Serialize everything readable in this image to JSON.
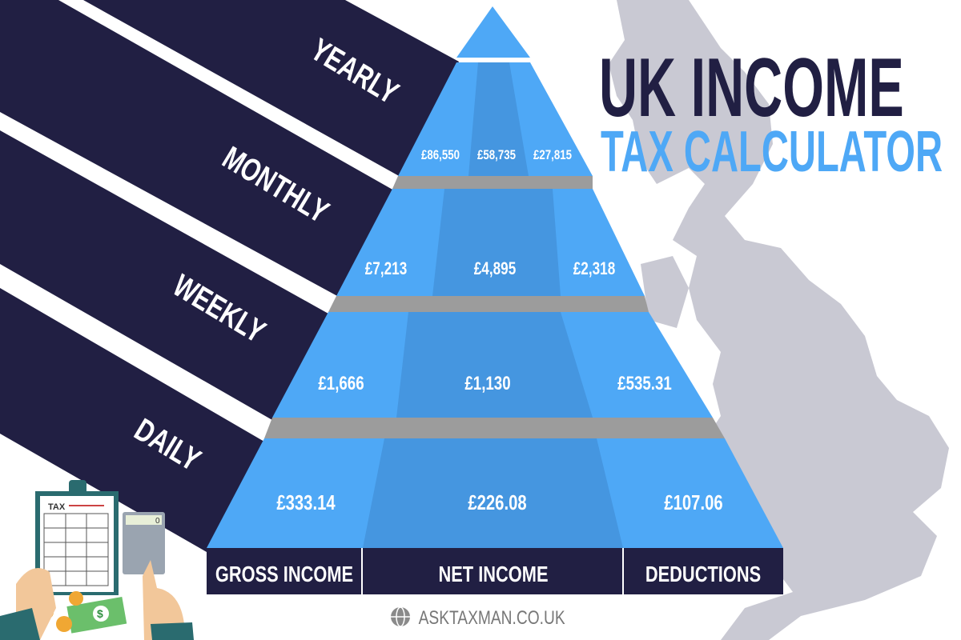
{
  "title": {
    "line1": "UK INCOME",
    "line2": "TAX CALCULATOR"
  },
  "colors": {
    "navy": "#211f43",
    "blue": "#4ea8f6",
    "blue_dark": "#4596e0",
    "slab": "#9c9c9c",
    "map": "#c9c9d3",
    "title_blue": "#4ea8f6"
  },
  "periods": [
    {
      "label": "YEARLY",
      "gross": "£86,550",
      "net": "£58,735",
      "deductions": "£27,815"
    },
    {
      "label": "MONTHLY",
      "gross": "£7,213",
      "net": "£4,895",
      "deductions": "£2,318"
    },
    {
      "label": "WEEKLY",
      "gross": "£1,666",
      "net": "£1,130",
      "deductions": "£535.31"
    },
    {
      "label": "DAILY",
      "gross": "£333.14",
      "net": "£226.08",
      "deductions": "£107.06"
    }
  ],
  "columns": [
    "GROSS INCOME",
    "NET INCOME",
    "DEDUCTIONS"
  ],
  "illustration": {
    "clipboard_label": "TAX",
    "calculator_display": "0"
  },
  "footer": {
    "icon": "globe-icon",
    "site": "ASKTAXMAN.CO.UK"
  }
}
